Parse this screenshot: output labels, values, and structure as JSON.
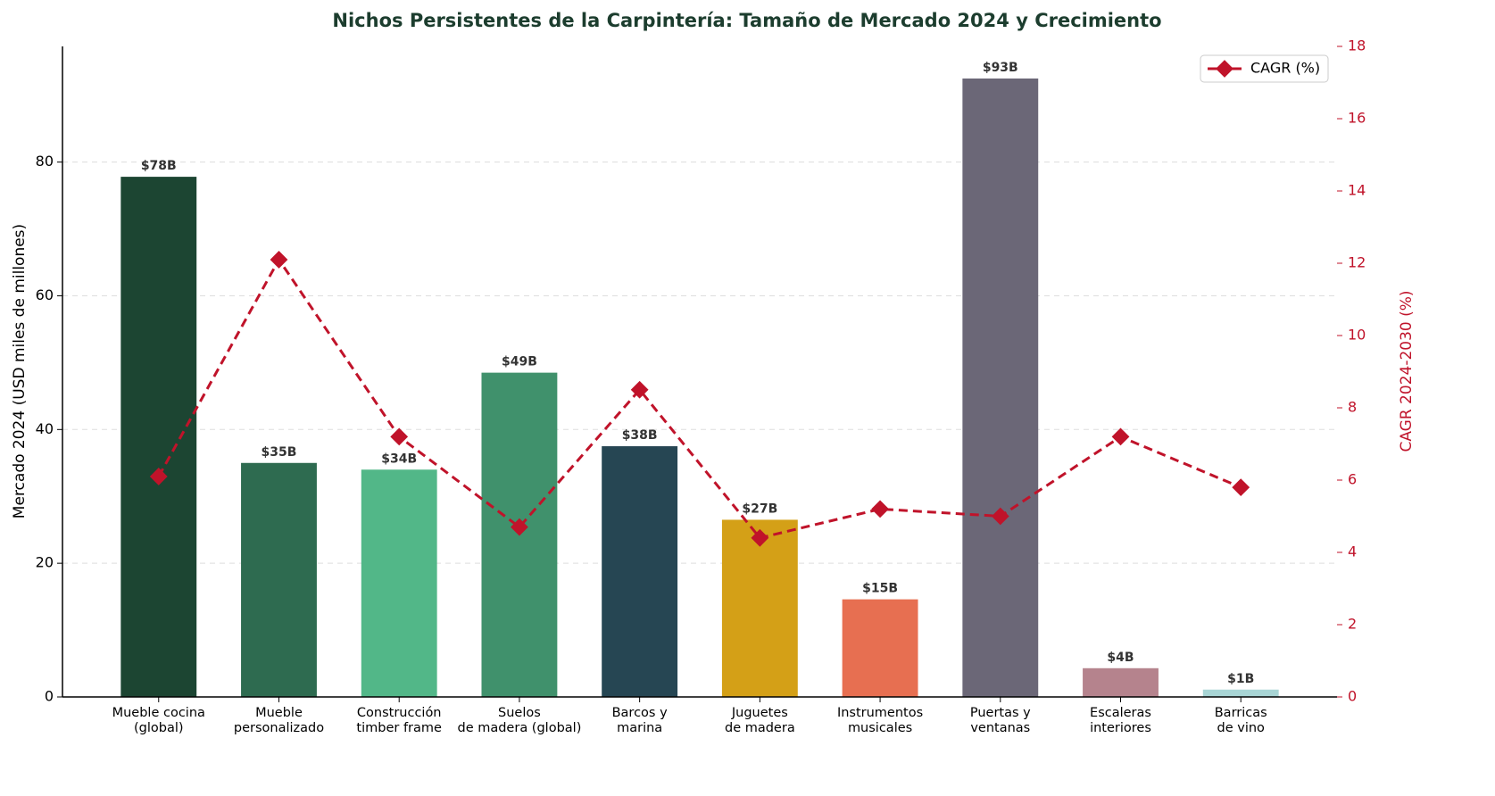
{
  "chart_data": {
    "type": "combo",
    "title": "Nichos Persistentes de la Carpintería: Tamaño de Mercado 2024 y Crecimiento",
    "ylabel": "Mercado 2024 (USD miles de millones)",
    "y2label": "CAGR 2024-2030 (%)",
    "categories": [
      "Mueble cocina\n(global)",
      "Mueble\npersonalizado",
      "Construcción\ntimber frame",
      "Suelos\nde madera (global)",
      "Barcos y\nmarina",
      "Juguetes\nde madera",
      "Instrumentos\nmusicales",
      "Puertas y\nventanas",
      "Escaleras\ninteriores",
      "Barricas\nde vino"
    ],
    "values": [
      77.8,
      35.0,
      34.0,
      48.5,
      37.5,
      26.5,
      14.6,
      92.5,
      4.3,
      1.1
    ],
    "value_labels": [
      "$78B",
      "$35B",
      "$34B",
      "$49B",
      "$38B",
      "$27B",
      "$15B",
      "$93B",
      "$4B",
      "$1B"
    ],
    "colors": [
      "#1c4532",
      "#2e6b50",
      "#52b788",
      "#40916c",
      "#264653",
      "#d4a017",
      "#e76f51",
      "#6b6777",
      "#b5838d",
      "#a8d5d5"
    ],
    "series": [
      {
        "name": "CAGR (%)",
        "color": "#c0132a",
        "values": [
          6.1,
          12.1,
          7.2,
          4.7,
          8.5,
          4.4,
          5.2,
          5.0,
          7.2,
          5.8
        ],
        "axis": "y2"
      }
    ],
    "ylim": [
      0,
      97.3
    ],
    "yticks": [
      0,
      20,
      40,
      60,
      80
    ],
    "y2lim": [
      0,
      18
    ],
    "y2ticks": [
      0,
      2,
      4,
      6,
      8,
      10,
      12,
      14,
      16,
      18
    ],
    "grid": true,
    "legend": "upper right"
  }
}
